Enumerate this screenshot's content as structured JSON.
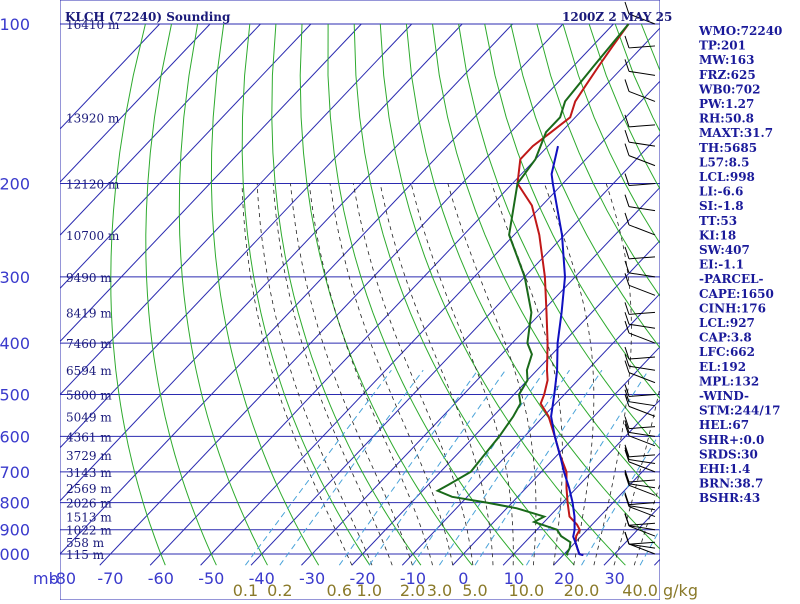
{
  "header": {
    "title": "KLCH (72240) Sounding",
    "datetime": "1200Z  2 MAY 25"
  },
  "colors": {
    "isobar": "#2b2bb0",
    "isotherm": "#2b2bb0",
    "dry_adiabat": "#2eaa2e",
    "moist_adiabat": "#222222",
    "mixing_ratio": "#4aa3d9",
    "temperature": "#c01818",
    "dewpoint": "#1a6a1a",
    "parcel": "#1010c0",
    "wind": "#000000"
  },
  "chart_data": {
    "type": "line",
    "title": "KLCH (72240) Sounding",
    "subtitle": "1200Z  2 MAY 25",
    "y_axis_unit": "mb",
    "pressure_levels": [
      100,
      200,
      300,
      400,
      500,
      600,
      700,
      800,
      900,
      1000
    ],
    "temperature_ticks": [
      -80,
      -70,
      -60,
      -50,
      -40,
      -30,
      -20,
      -10,
      0,
      10,
      20,
      30
    ],
    "xlim": [
      -80,
      39
    ],
    "ylim": [
      1050,
      100
    ],
    "mixing_ratio_labels": [
      "0.1",
      "0.2",
      "0.6",
      "1.0",
      "2.0",
      "3.0",
      "5.0",
      "10.0",
      "20.0",
      "40.0"
    ],
    "mixing_ratio_unit": "g/kg",
    "height_labels": [
      {
        "p": 100,
        "text": "16410 m"
      },
      {
        "p": 150,
        "text": "13920 m"
      },
      {
        "p": 200,
        "text": "12120 m"
      },
      {
        "p": 250,
        "text": "10700 m"
      },
      {
        "p": 300,
        "text": "9490 m"
      },
      {
        "p": 350,
        "text": "8419 m"
      },
      {
        "p": 400,
        "text": "7460 m"
      },
      {
        "p": 450,
        "text": "6594 m"
      },
      {
        "p": 500,
        "text": "5800 m"
      },
      {
        "p": 550,
        "text": "5049 m"
      },
      {
        "p": 600,
        "text": "4361 m"
      },
      {
        "p": 650,
        "text": "3729 m"
      },
      {
        "p": 700,
        "text": "3143 m"
      },
      {
        "p": 750,
        "text": "2569 m"
      },
      {
        "p": 800,
        "text": "2026 m"
      },
      {
        "p": 850,
        "text": "1513 m"
      },
      {
        "p": 900,
        "text": "1022 m"
      },
      {
        "p": 950,
        "text": "558 m"
      },
      {
        "p": 1000,
        "text": "115 m"
      }
    ],
    "series": [
      {
        "key": "temperature",
        "points": [
          [
            1005,
            24
          ],
          [
            1000,
            23
          ],
          [
            975,
            21.5
          ],
          [
            950,
            20
          ],
          [
            925,
            19
          ],
          [
            900,
            18.5
          ],
          [
            880,
            17
          ],
          [
            850,
            14
          ],
          [
            800,
            11
          ],
          [
            750,
            8
          ],
          [
            700,
            5
          ],
          [
            650,
            0.5
          ],
          [
            600,
            -4
          ],
          [
            550,
            -9
          ],
          [
            520,
            -13
          ],
          [
            500,
            -14
          ],
          [
            470,
            -16
          ],
          [
            450,
            -18
          ],
          [
            400,
            -23
          ],
          [
            350,
            -29
          ],
          [
            300,
            -36
          ],
          [
            250,
            -45
          ],
          [
            220,
            -52
          ],
          [
            200,
            -59
          ],
          [
            180,
            -63
          ],
          [
            170,
            -63
          ],
          [
            160,
            -62
          ],
          [
            150,
            -61
          ],
          [
            140,
            -63
          ],
          [
            130,
            -64
          ],
          [
            120,
            -65
          ],
          [
            110,
            -66
          ],
          [
            100,
            -67
          ]
        ]
      },
      {
        "key": "dewpoint",
        "points": [
          [
            1005,
            21
          ],
          [
            1000,
            20.5
          ],
          [
            975,
            20
          ],
          [
            950,
            19
          ],
          [
            925,
            16
          ],
          [
            900,
            14
          ],
          [
            880,
            10
          ],
          [
            870,
            8
          ],
          [
            850,
            9
          ],
          [
            820,
            2
          ],
          [
            800,
            -5
          ],
          [
            780,
            -13
          ],
          [
            760,
            -17
          ],
          [
            740,
            -16
          ],
          [
            700,
            -14
          ],
          [
            650,
            -14.5
          ],
          [
            600,
            -15
          ],
          [
            550,
            -16
          ],
          [
            520,
            -17
          ],
          [
            500,
            -19
          ],
          [
            470,
            -20
          ],
          [
            450,
            -22
          ],
          [
            420,
            -24
          ],
          [
            400,
            -27
          ],
          [
            350,
            -32
          ],
          [
            300,
            -40
          ],
          [
            250,
            -51
          ],
          [
            200,
            -59
          ],
          [
            180,
            -60
          ],
          [
            160,
            -63
          ],
          [
            150,
            -63
          ],
          [
            140,
            -65
          ],
          [
            120,
            -66
          ],
          [
            100,
            -67
          ]
        ]
      },
      {
        "key": "parcel",
        "points": [
          [
            1005,
            24
          ],
          [
            1000,
            23
          ],
          [
            950,
            20
          ],
          [
            927,
            18.5
          ],
          [
            900,
            17.5
          ],
          [
            850,
            15
          ],
          [
            800,
            12
          ],
          [
            750,
            8.5
          ],
          [
            700,
            4.5
          ],
          [
            662,
            1.5
          ],
          [
            600,
            -4
          ],
          [
            550,
            -8.5
          ],
          [
            500,
            -12
          ],
          [
            450,
            -16
          ],
          [
            400,
            -21
          ],
          [
            350,
            -26
          ],
          [
            300,
            -32
          ],
          [
            250,
            -40.5
          ],
          [
            200,
            -52
          ],
          [
            192,
            -54
          ],
          [
            170,
            -58
          ]
        ]
      }
    ],
    "wind_levels": [
      1000,
      975,
      950,
      925,
      900,
      875,
      850,
      825,
      800,
      775,
      750,
      725,
      700,
      675,
      650,
      625,
      600,
      575,
      550,
      525,
      500,
      475,
      450,
      425,
      400,
      375,
      350,
      325,
      300,
      275,
      250,
      225,
      200,
      185,
      170,
      155,
      140,
      125,
      110,
      100
    ]
  },
  "indices": [
    "WMO:72240",
    "TP:201",
    "MW:163",
    "FRZ:625",
    "WB0:702",
    "PW:1.27",
    "RH:50.8",
    "MAXT:31.7",
    "TH:5685",
    "L57:8.5",
    "LCL:998",
    "LI:-6.6",
    "SI:-1.8",
    "TT:53",
    "KI:18",
    "SW:407",
    "EI:-1.1",
    "-PARCEL-",
    "CAPE:1650",
    "CINH:176",
    "LCL:927",
    "CAP:3.8",
    "LFC:662",
    "EL:192",
    "MPL:132",
    "-WIND-",
    "STM:244/17",
    "HEL:67",
    "SHR+:0.0",
    "SRDS:30",
    "EHI:1.4",
    "BRN:38.7",
    "BSHR:43"
  ]
}
